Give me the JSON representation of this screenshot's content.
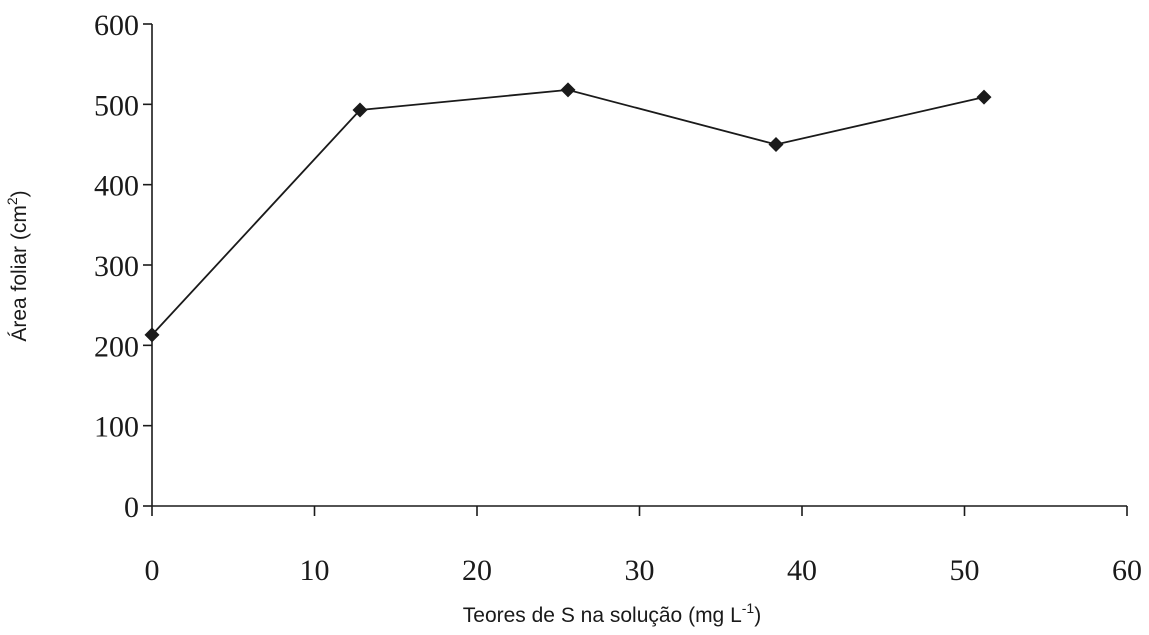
{
  "chart_data": {
    "type": "line",
    "title": "",
    "xlabel": {
      "text": "Teores de S na solução (mg L",
      "sup": "-1",
      "suffix": ")"
    },
    "ylabel": {
      "text": "Área foliar (cm",
      "sup": "2",
      "suffix": ")"
    },
    "xlim": [
      0,
      60
    ],
    "ylim": [
      0,
      600
    ],
    "xticks": [
      "0",
      "10",
      "20",
      "30",
      "40",
      "50",
      "60"
    ],
    "yticks": [
      "0",
      "100",
      "200",
      "300",
      "400",
      "500",
      "600"
    ],
    "grid": false,
    "legend": "none",
    "colors": {
      "series": "#1a1a1a"
    },
    "series": [
      {
        "marker": "diamond",
        "x": [
          0,
          12.8,
          25.6,
          38.4,
          51.2
        ],
        "y": [
          213,
          493,
          518,
          450,
          509
        ]
      }
    ]
  }
}
